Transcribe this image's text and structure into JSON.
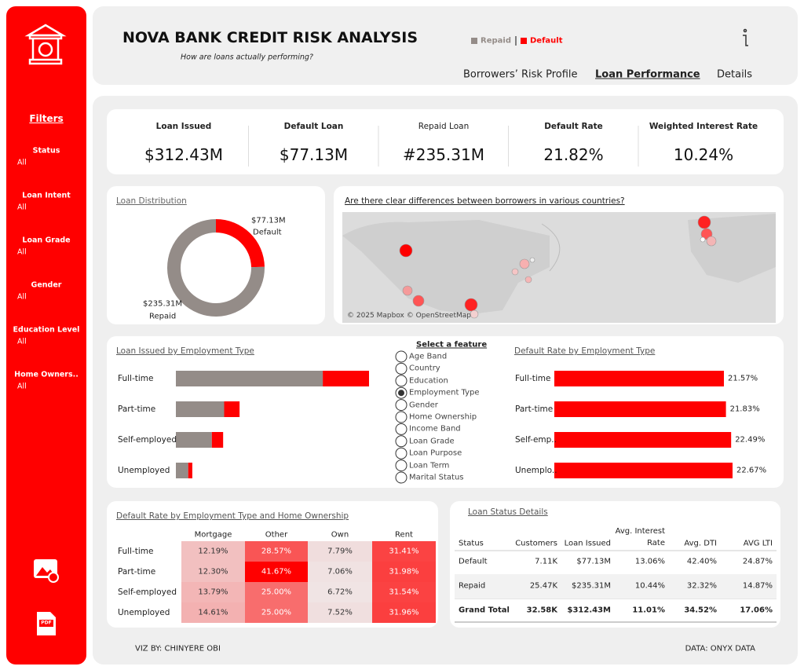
{
  "sidebar": {
    "filters_title": "Filters",
    "filters": [
      {
        "label": "Status",
        "value": "All"
      },
      {
        "label": "Loan Intent",
        "value": "All"
      },
      {
        "label": "Loan Grade",
        "value": "All"
      },
      {
        "label": "Gender",
        "value": "All"
      },
      {
        "label": "Education Level",
        "value": "All"
      },
      {
        "label": "Home Owners..",
        "value": "All"
      }
    ],
    "pdf_icon": "PDF"
  },
  "header": {
    "title": "NOVA BANK CREDIT RISK ANALYSIS",
    "subtitle": "How are loans actually performing?",
    "legend": [
      {
        "name": "Repaid",
        "color": "#948c88"
      },
      {
        "name": "Default",
        "color": "#ff0000"
      }
    ],
    "tabs": [
      "Borrowers’ Risk Profile",
      "Loan Performance",
      "Details"
    ],
    "active_tab": 1
  },
  "kpis": [
    {
      "label": "Loan Issued",
      "value": "$312.43M"
    },
    {
      "label": "Default Loan",
      "value": "$77.13M"
    },
    {
      "label": "Repaid Loan",
      "value": "#235.31M"
    },
    {
      "label": "Default Rate",
      "value": "21.82%"
    },
    {
      "label": "Weighted Interest Rate",
      "value": "10.24%"
    }
  ],
  "loan_distribution": {
    "title": "Loan Distribution",
    "segments": [
      {
        "name": "Default",
        "value": 77.13,
        "label": "$77.13M",
        "color": "#ff0000"
      },
      {
        "name": "Repaid",
        "value": 235.31,
        "label": "$235.31M",
        "color": "#948c88"
      }
    ]
  },
  "map": {
    "title": "Are there clear differences between borrowers in various countries?",
    "attribution": "© 2025 Mapbox © OpenStreetMap"
  },
  "loan_issued_by_employment": {
    "title": "Loan Issued by Employment Type",
    "categories": [
      "Full-time",
      "Part-time",
      "Self-employed",
      "Unemployed"
    ],
    "repaid": [
      143,
      47,
      35,
      12
    ],
    "default": [
      45,
      15,
      11,
      4
    ]
  },
  "feature_selector": {
    "title": "Select a feature",
    "options": [
      "Age Band",
      "Country",
      "Education",
      "Employment Type",
      "Gender",
      "Home Ownership",
      "Income Band",
      "Loan Grade",
      "Loan Purpose",
      "Loan Term",
      "Marital Status"
    ],
    "selected": 3
  },
  "default_rate_by_employment": {
    "title": "Default Rate by Employment Type",
    "categories": [
      "Full-time",
      "Part-time",
      "Self-emp..",
      "Unemplo.."
    ],
    "values": [
      21.57,
      21.83,
      22.49,
      22.67
    ],
    "value_labels": [
      "21.57%",
      "21.83%",
      "22.49%",
      "22.67%"
    ],
    "color": "#ff0000"
  },
  "heatmap": {
    "title": "Default Rate by Employment Type and Home Ownership",
    "columns": [
      "Mortgage",
      "Other",
      "Own",
      "Rent"
    ],
    "rows": [
      "Full-time",
      "Part-time",
      "Self-employed",
      "Unemployed"
    ],
    "values": [
      [
        12.19,
        28.57,
        7.79,
        31.41
      ],
      [
        12.3,
        41.67,
        7.06,
        31.98
      ],
      [
        13.79,
        25.0,
        6.72,
        31.54
      ],
      [
        14.61,
        25.0,
        7.52,
        31.96
      ]
    ],
    "value_labels": [
      [
        "12.19%",
        "28.57%",
        "7.79%",
        "31.41%"
      ],
      [
        "12.30%",
        "41.67%",
        "7.06%",
        "31.98%"
      ],
      [
        "13.79%",
        "25.00%",
        "6.72%",
        "31.54%"
      ],
      [
        "14.61%",
        "25.00%",
        "7.52%",
        "31.96%"
      ]
    ]
  },
  "status_table": {
    "title": "Loan Status Details",
    "columns": [
      "Status",
      "Customers",
      "Loan Issued",
      "Avg. Interest Rate",
      "Avg. DTI",
      "AVG LTI"
    ],
    "rows": [
      [
        "Default",
        "7.11K",
        "$77.13M",
        "13.06%",
        "42.40%",
        "24.87%"
      ],
      [
        "Repaid",
        "25.47K",
        "$235.31M",
        "10.44%",
        "32.32%",
        "14.87%"
      ],
      [
        "Grand Total",
        "32.58K",
        "$312.43M",
        "11.01%",
        "34.52%",
        "17.06%"
      ]
    ]
  },
  "footer": {
    "credit": "VIZ BY: CHINYERE OBI",
    "source": "DATA: ONYX DATA"
  }
}
